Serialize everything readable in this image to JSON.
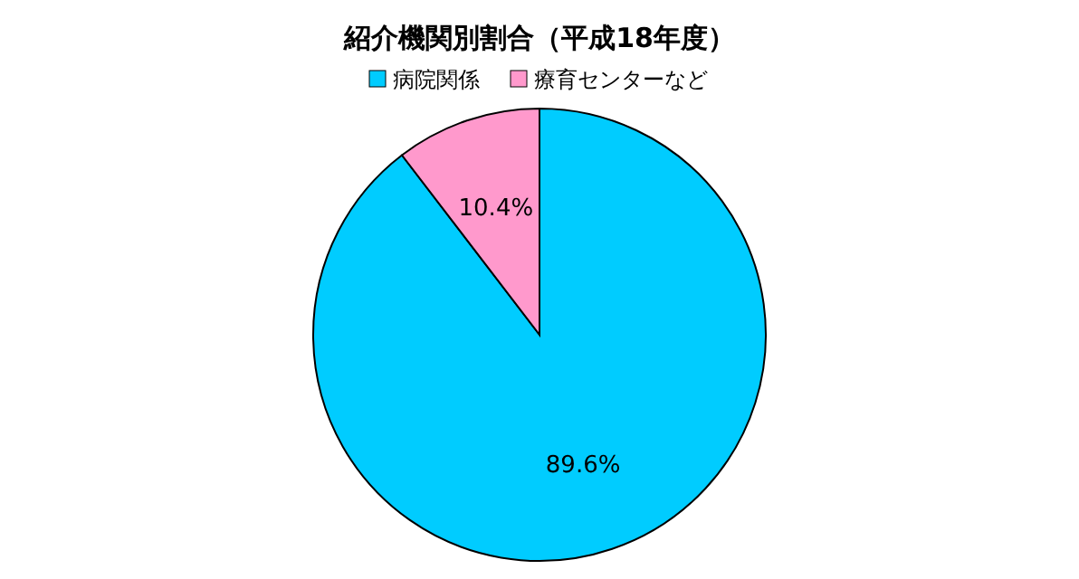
{
  "chart_data": {
    "type": "pie",
    "title": "紹介機関別割合（平成18年度）",
    "categories": [
      "病院関係",
      "療育センターなど"
    ],
    "values": [
      89.6,
      10.4
    ],
    "colors": [
      "#00ccff",
      "#ff99cc"
    ],
    "value_labels": [
      "89.6%",
      "10.4%"
    ],
    "legend": "top"
  }
}
